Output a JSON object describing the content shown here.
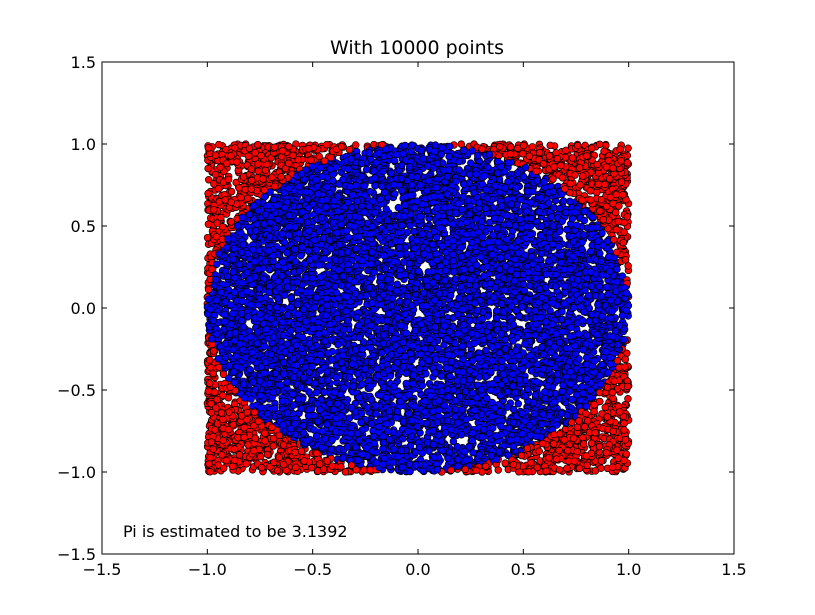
{
  "chart_data": {
    "type": "scatter",
    "title": "With 10000 points",
    "xlabel": "",
    "ylabel": "",
    "xlim": [
      -1.5,
      1.5
    ],
    "ylim": [
      -1.5,
      1.5
    ],
    "x_ticks": [
      -1.5,
      -1.0,
      -0.5,
      0.0,
      0.5,
      1.0,
      1.5
    ],
    "y_ticks": [
      -1.5,
      -1.0,
      -0.5,
      0.0,
      0.5,
      1.0,
      1.5
    ],
    "x_tick_labels": [
      "−1.5",
      "−1.0",
      "−0.5",
      "0.0",
      "0.5",
      "1.0",
      "1.5"
    ],
    "y_tick_labels": [
      "−1.5",
      "−1.0",
      "−0.5",
      "0.0",
      "0.5",
      "1.0",
      "1.5"
    ],
    "grid": false,
    "point_count": 10000,
    "sampling_region": {
      "x": [
        -1.0,
        1.0
      ],
      "y": [
        -1.0,
        1.0
      ]
    },
    "series": [
      {
        "color": "#ff0000",
        "rule": "x^2 + y^2 > 1"
      },
      {
        "color": "#0000ff",
        "rule": "x^2 + y^2 <= 1"
      }
    ],
    "annotation": "Pi is estimated to be 3.1392",
    "pi_estimate": 3.1392
  }
}
